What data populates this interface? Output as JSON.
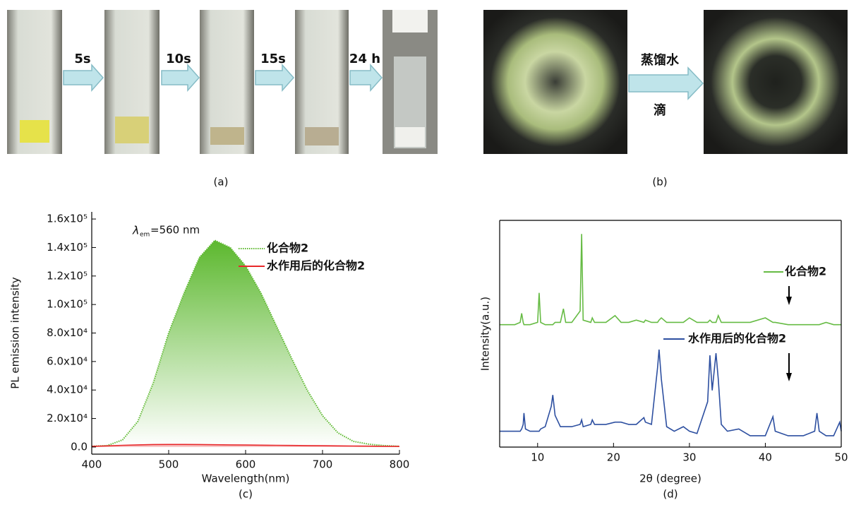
{
  "panels": {
    "a": {
      "caption": "(a)",
      "steps": [
        "5s",
        "10s",
        "15s",
        "24 h"
      ]
    },
    "b": {
      "caption": "(b)",
      "arrow_top": "蒸馏水",
      "arrow_bottom": "滴"
    }
  },
  "chart_data": [
    {
      "type": "line",
      "caption": "(c)",
      "x_label": "Wavelength(nm)",
      "y_label": "PL emission intensity",
      "annotation": {
        "symbol": "λ",
        "subscript": "em",
        "text": "=560 nm"
      },
      "x": [
        400,
        420,
        440,
        460,
        480,
        500,
        520,
        540,
        560,
        580,
        600,
        620,
        640,
        660,
        680,
        700,
        720,
        740,
        760,
        780,
        800
      ],
      "series": [
        {
          "name": "化合物2",
          "color": "#5cb82e",
          "style": "dotted",
          "fill": "gradient",
          "values": [
            500,
            1000,
            5000,
            18000,
            45000,
            80000,
            108000,
            133000,
            145000,
            140000,
            127000,
            108000,
            85000,
            62000,
            40000,
            22000,
            10000,
            4000,
            2000,
            1000,
            500
          ]
        },
        {
          "name": "水作用后的化合物2",
          "color": "#e8282a",
          "style": "solid",
          "fill": "#f6c4c4",
          "values": [
            500,
            800,
            1200,
            1500,
            1700,
            1800,
            1800,
            1700,
            1600,
            1500,
            1400,
            1300,
            1200,
            1100,
            1000,
            900,
            800,
            700,
            600,
            500,
            400
          ]
        }
      ],
      "xlim": [
        400,
        800
      ],
      "ylim": [
        -5000,
        165000
      ],
      "xticks": [
        400,
        500,
        600,
        700,
        800
      ],
      "yticks": [
        {
          "value": 0,
          "label": "0.0"
        },
        {
          "value": 20000,
          "label": "2.0x10⁴"
        },
        {
          "value": 40000,
          "label": "4.0x10⁴"
        },
        {
          "value": 60000,
          "label": "6.0x10⁴"
        },
        {
          "value": 80000,
          "label": "8.0x10⁴"
        },
        {
          "value": 100000,
          "label": "1.0x10⁵"
        },
        {
          "value": 120000,
          "label": "1.2x10⁵"
        },
        {
          "value": 140000,
          "label": "1.4x10⁵"
        },
        {
          "value": 160000,
          "label": "1.6x10⁵"
        }
      ]
    },
    {
      "type": "line",
      "caption": "(d)",
      "x_label": "2θ (degree)",
      "y_label": "Intensity(a.u.)",
      "x": [
        5,
        6,
        7,
        7.7,
        7.9,
        8.1,
        8.2,
        8.4,
        9,
        10,
        10.2,
        10.4,
        11,
        11.8,
        12,
        12.3,
        13,
        13.4,
        13.7,
        14.5,
        15.6,
        15.8,
        16,
        17,
        17.2,
        17.5,
        19,
        20.2,
        21,
        22,
        23,
        24,
        24.2,
        25,
        25.8,
        26,
        26.3,
        27,
        28,
        29.2,
        30,
        31,
        32.4,
        32.7,
        33,
        33.5,
        33.8,
        34.2,
        35,
        36.5,
        38,
        40,
        41,
        41.3,
        43,
        45,
        46.5,
        46.8,
        47.1,
        48,
        49,
        49.8,
        50
      ],
      "series": [
        {
          "name": "化合物2",
          "color": "#66bb44",
          "style": "solid",
          "values": [
            54,
            54,
            54,
            55,
            59,
            55,
            54,
            54,
            54,
            55,
            68,
            55,
            54,
            54,
            54,
            55,
            55,
            61,
            55,
            55,
            60,
            94,
            56,
            55,
            57,
            55,
            55,
            58,
            55,
            55,
            56,
            55,
            56,
            55,
            55,
            56,
            57,
            55,
            55,
            55,
            57,
            55,
            55,
            56,
            55,
            55,
            58,
            55,
            55,
            55,
            55,
            57,
            55,
            55,
            54,
            54,
            54,
            54,
            54,
            55,
            54,
            54,
            54
          ]
        },
        {
          "name": "水作用后的化合物2",
          "color": "#2d4fa0",
          "style": "solid",
          "values": [
            7,
            7,
            7,
            7,
            8,
            10,
            15,
            8,
            7,
            7,
            7,
            8,
            9,
            18,
            23,
            14,
            9,
            9,
            9,
            9,
            10,
            12,
            9,
            10,
            12,
            10,
            10,
            11,
            11,
            10,
            10,
            13,
            11,
            10,
            35,
            43,
            30,
            9,
            7,
            9,
            7,
            6,
            20,
            40.5,
            25,
            41.4,
            30,
            10,
            7,
            8,
            5,
            5,
            13.4,
            7,
            5,
            5,
            7,
            15,
            7,
            5,
            5,
            11,
            7
          ]
        }
      ],
      "xlim": [
        5,
        50
      ],
      "ylim": [
        0,
        100
      ],
      "xticks": [
        10,
        20,
        30,
        40,
        50
      ]
    }
  ]
}
